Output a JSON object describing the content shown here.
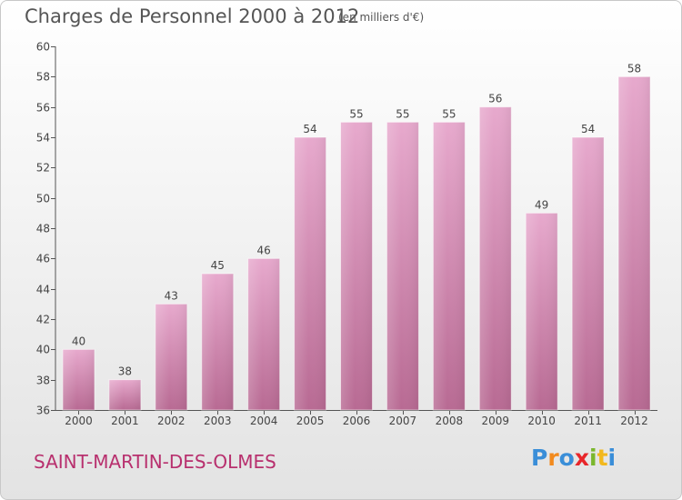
{
  "header": {
    "title": "Charges de Personnel 2000 à 2012",
    "unit": "(en milliers d'€)"
  },
  "footer": {
    "commune": "SAINT-MARTIN-DES-OLMES",
    "brand": "Proxiti"
  },
  "colors": {
    "bar_top": "#e7a9cd",
    "bar_bottom": "#b86a93",
    "commune_text": "#b8306e",
    "axis": "#555555"
  },
  "chart_data": {
    "type": "bar",
    "title": "Charges de Personnel 2000 à 2012",
    "subtitle": "(en milliers d'€)",
    "categories": [
      "2000",
      "2001",
      "2002",
      "2003",
      "2004",
      "2005",
      "2006",
      "2007",
      "2008",
      "2009",
      "2010",
      "2011",
      "2012"
    ],
    "values": [
      40,
      38,
      43,
      45,
      46,
      54,
      55,
      55,
      55,
      56,
      49,
      54,
      58
    ],
    "ylim": [
      36,
      60
    ],
    "yticks": [
      36,
      38,
      40,
      42,
      44,
      46,
      48,
      50,
      52,
      54,
      56,
      58,
      60
    ],
    "xlabel": "",
    "ylabel": "",
    "grid": false,
    "data_labels": true,
    "legend": "none"
  }
}
